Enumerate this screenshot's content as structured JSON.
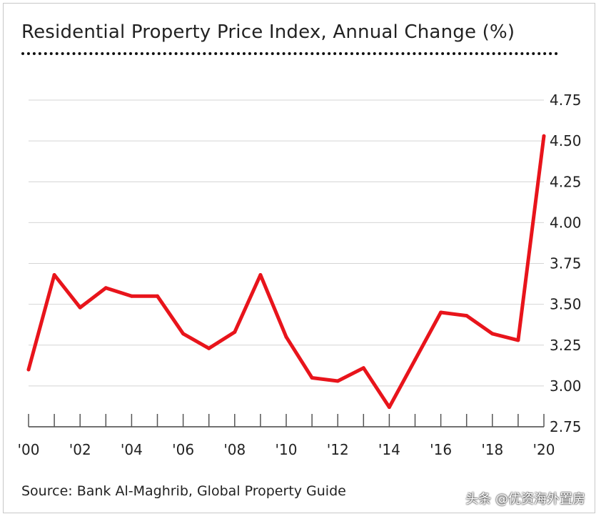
{
  "chart_data": {
    "type": "line",
    "title": "Residential Property Price Index, Annual Change (%)",
    "source": "Source: Bank Al-Maghrib, Global Property Guide",
    "x": [
      2000,
      2001,
      2002,
      2003,
      2004,
      2005,
      2006,
      2007,
      2008,
      2009,
      2010,
      2011,
      2012,
      2013,
      2014,
      2015,
      2016,
      2017,
      2018,
      2019,
      2020
    ],
    "x_tick_labels": [
      "'00",
      "'02",
      "'04",
      "'06",
      "'08",
      "'10",
      "'12",
      "'14",
      "'16",
      "'18",
      "'20"
    ],
    "series": [
      {
        "values": [
          3.1,
          3.68,
          3.48,
          3.6,
          3.55,
          3.55,
          3.32,
          3.23,
          3.33,
          3.68,
          3.3,
          3.05,
          3.03,
          3.11,
          2.87,
          3.16,
          3.45,
          3.43,
          3.32,
          3.28,
          4.53
        ],
        "color": "#e8141b"
      }
    ],
    "y_ticks": [
      "2.75",
      "3.00",
      "3.25",
      "3.50",
      "3.75",
      "4.00",
      "4.25",
      "4.50",
      "4.75"
    ],
    "ylim": [
      2.75,
      4.75
    ],
    "xlabel": "",
    "ylabel": "",
    "grid": true,
    "y_axis_side": "right"
  },
  "watermark": "头条 @优资海外置房"
}
